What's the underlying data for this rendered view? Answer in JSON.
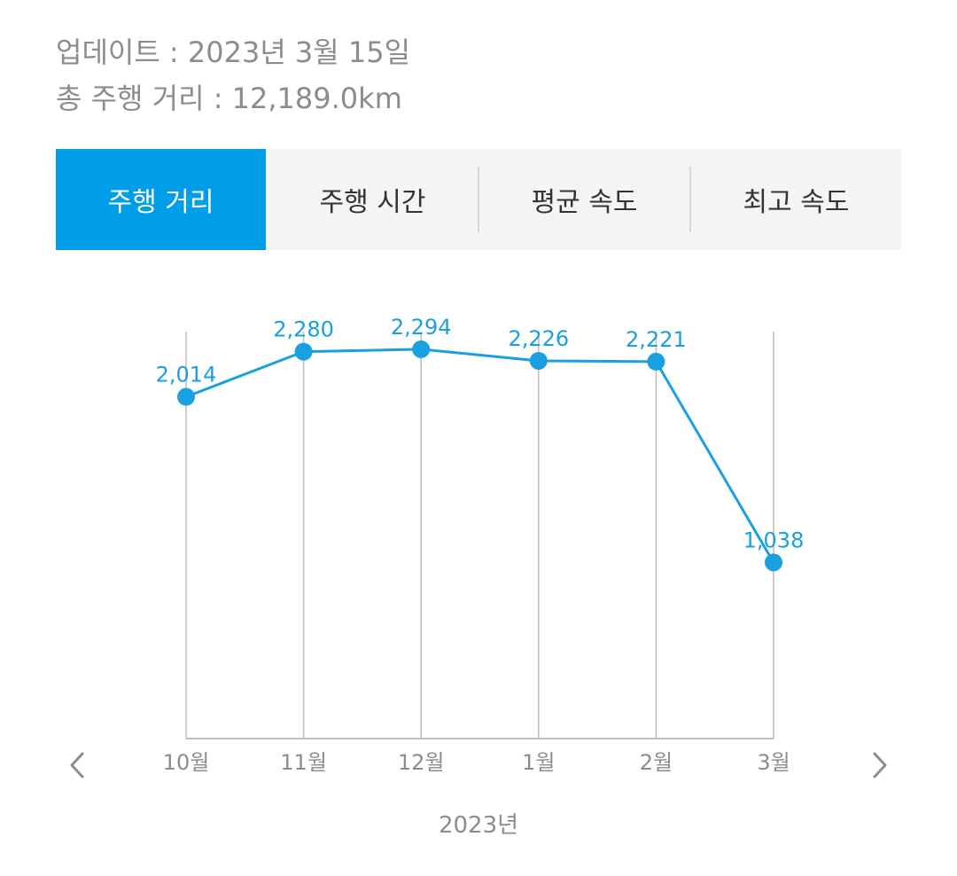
{
  "header": {
    "updated": "업데이트 : 2023년 3월 15일",
    "total_distance": "총 주행 거리 : 12,189.0km"
  },
  "tabs": [
    {
      "label": "주행 거리",
      "active": true
    },
    {
      "label": "주행 시간",
      "active": false
    },
    {
      "label": "평균 속도",
      "active": false
    },
    {
      "label": "최고 속도",
      "active": false
    }
  ],
  "nav": {
    "prev_icon": "chevron-left-icon",
    "next_icon": "chevron-right-icon"
  },
  "colors": {
    "accent": "#009ee8",
    "line": "#1a9fe0",
    "grid": "#bdbdbd",
    "muted_text": "#8c8c8c"
  },
  "chart_data": {
    "type": "line",
    "categories": [
      "10월",
      "11월",
      "12월",
      "1월",
      "2월",
      "3월"
    ],
    "values": [
      2014,
      2280,
      2294,
      2226,
      2221,
      1038
    ],
    "data_labels": [
      "2,014",
      "2,280",
      "2,294",
      "2,226",
      "2,221",
      "1,038"
    ],
    "xlabel": "2023년",
    "ylabel": "",
    "ylim": [
      0,
      2743
    ],
    "grid": "vertical"
  }
}
